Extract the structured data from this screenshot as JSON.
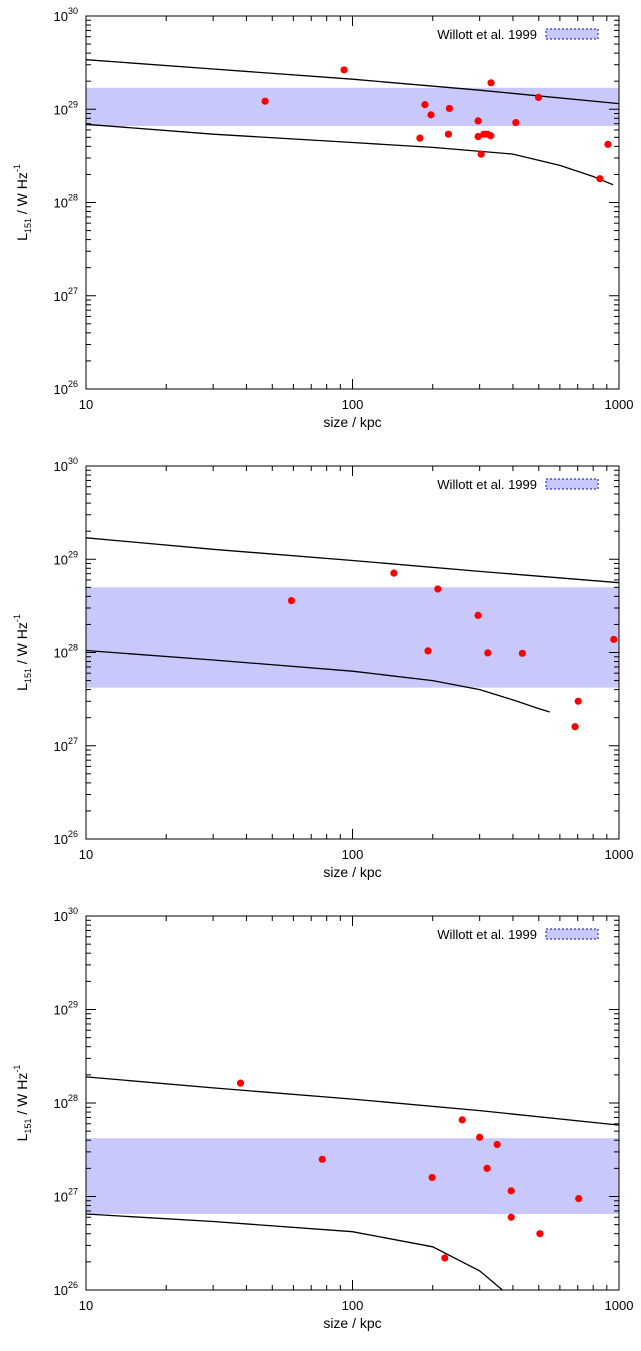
{
  "chart_data": [
    {
      "type": "scatter",
      "xlabel": "size / kpc",
      "ylabel": {
        "base": "L",
        "sub": "151",
        "rest": " / W Hz",
        "sup": "-1"
      },
      "xscale": "log",
      "yscale": "log",
      "xlim": [
        10,
        1000
      ],
      "ylim": [
        1e+26,
        1e+30
      ],
      "x_ticks": [
        {
          "v": 10,
          "label": "10"
        },
        {
          "v": 100,
          "label": "100"
        },
        {
          "v": 1000,
          "label": "1000"
        }
      ],
      "y_ticks": [
        {
          "v": 1e+26,
          "base": "10",
          "exp": "26"
        },
        {
          "v": 1e+27,
          "base": "10",
          "exp": "27"
        },
        {
          "v": 1e+28,
          "base": "10",
          "exp": "28"
        },
        {
          "v": 1e+29,
          "base": "10",
          "exp": "29"
        },
        {
          "v": 1e+30,
          "base": "10",
          "exp": "30"
        }
      ],
      "legend": {
        "label": "Willott et al. 1999",
        "position": "top-right"
      },
      "band": [
        6.6e+28,
        1.7e+29
      ],
      "curves": [
        [
          [
            10,
            3.4e+29
          ],
          [
            30,
            2.7e+29
          ],
          [
            100,
            2.1e+29
          ],
          [
            300,
            1.6e+29
          ],
          [
            1000,
            1.15e+29
          ]
        ],
        [
          [
            10,
            6.9e+28
          ],
          [
            30,
            5.4e+28
          ],
          [
            100,
            4.4e+28
          ],
          [
            200,
            3.9e+28
          ],
          [
            400,
            3.3e+28
          ],
          [
            600,
            2.5e+28
          ],
          [
            800,
            1.9e+28
          ],
          [
            950,
            1.55e+28
          ]
        ]
      ],
      "points": [
        [
          47,
          1.22e+29
        ],
        [
          93,
          2.64e+29
        ],
        [
          179,
          4.9e+28
        ],
        [
          187,
          1.12e+29
        ],
        [
          197,
          8.7e+28
        ],
        [
          229,
          5.4e+28
        ],
        [
          231,
          1.02e+29
        ],
        [
          296,
          7.5e+28
        ],
        [
          296,
          5.1e+28
        ],
        [
          304,
          3.3e+28
        ],
        [
          311,
          5.4e+28
        ],
        [
          321,
          5.4e+28
        ],
        [
          330,
          5.2e+28
        ],
        [
          331,
          1.92e+29
        ],
        [
          410,
          7.2e+28
        ],
        [
          499,
          1.34e+29
        ],
        [
          848,
          1.8e+28
        ],
        [
          909,
          4.2e+28
        ]
      ],
      "colors": {
        "band": "#c8c8fa",
        "points": "#ff0000",
        "curves": "#000000"
      }
    },
    {
      "type": "scatter",
      "xlabel": "size / kpc",
      "ylabel": {
        "base": "L",
        "sub": "151",
        "rest": " / W Hz",
        "sup": "-1"
      },
      "xscale": "log",
      "yscale": "log",
      "xlim": [
        10,
        1000
      ],
      "ylim": [
        1e+26,
        1e+30
      ],
      "x_ticks": [
        {
          "v": 10,
          "label": "10"
        },
        {
          "v": 100,
          "label": "100"
        },
        {
          "v": 1000,
          "label": "1000"
        }
      ],
      "y_ticks": [
        {
          "v": 1e+26,
          "base": "10",
          "exp": "26"
        },
        {
          "v": 1e+27,
          "base": "10",
          "exp": "27"
        },
        {
          "v": 1e+28,
          "base": "10",
          "exp": "28"
        },
        {
          "v": 1e+29,
          "base": "10",
          "exp": "29"
        },
        {
          "v": 1e+30,
          "base": "10",
          "exp": "30"
        }
      ],
      "legend": {
        "label": "Willott et al. 1999",
        "position": "top-right"
      },
      "band": [
        4.2e+27,
        5e+28
      ],
      "curves": [
        [
          [
            10,
            1.7e+29
          ],
          [
            30,
            1.28e+29
          ],
          [
            100,
            9.7e+28
          ],
          [
            300,
            7.4e+28
          ],
          [
            1000,
            5.6e+28
          ]
        ],
        [
          [
            10,
            1.05e+28
          ],
          [
            30,
            8.3e+27
          ],
          [
            100,
            6.3e+27
          ],
          [
            200,
            5e+27
          ],
          [
            300,
            4e+27
          ],
          [
            400,
            3.1e+27
          ],
          [
            500,
            2.5e+27
          ],
          [
            550,
            2.3e+27
          ]
        ]
      ],
      "points": [
        [
          59,
          3.6e+28
        ],
        [
          143,
          7.1e+28
        ],
        [
          192,
          1.04e+28
        ],
        [
          209,
          4.8e+28
        ],
        [
          296,
          2.5e+28
        ],
        [
          322,
          9.9e+27
        ],
        [
          434,
          9.8e+27
        ],
        [
          684,
          1.6e+27
        ],
        [
          703,
          3e+27
        ],
        [
          956,
          1.38e+28
        ]
      ],
      "colors": {
        "band": "#c8c8fa",
        "points": "#ff0000",
        "curves": "#000000"
      }
    },
    {
      "type": "scatter",
      "xlabel": "size / kpc",
      "ylabel": {
        "base": "L",
        "sub": "151",
        "rest": " / W Hz",
        "sup": "-1"
      },
      "xscale": "log",
      "yscale": "log",
      "xlim": [
        10,
        1000
      ],
      "ylim": [
        1e+26,
        1e+30
      ],
      "x_ticks": [
        {
          "v": 10,
          "label": "10"
        },
        {
          "v": 100,
          "label": "100"
        },
        {
          "v": 1000,
          "label": "1000"
        }
      ],
      "y_ticks": [
        {
          "v": 1e+26,
          "base": "10",
          "exp": "26"
        },
        {
          "v": 1e+27,
          "base": "10",
          "exp": "27"
        },
        {
          "v": 1e+28,
          "base": "10",
          "exp": "28"
        },
        {
          "v": 1e+29,
          "base": "10",
          "exp": "29"
        },
        {
          "v": 1e+30,
          "base": "10",
          "exp": "30"
        }
      ],
      "legend": {
        "label": "Willott et al. 1999",
        "position": "top-right"
      },
      "band": [
        6.5e+26,
        4.2e+27
      ],
      "curves": [
        [
          [
            10,
            1.9e+28
          ],
          [
            30,
            1.45e+28
          ],
          [
            100,
            1.1e+28
          ],
          [
            300,
            8.3e+27
          ],
          [
            1000,
            5.8e+27
          ]
        ],
        [
          [
            10,
            6.5e+26
          ],
          [
            30,
            5.4e+26
          ],
          [
            100,
            4.2e+26
          ],
          [
            200,
            2.9e+26
          ],
          [
            300,
            1.6e+26
          ],
          [
            365,
            1e+26
          ]
        ]
      ],
      "points": [
        [
          38,
          1.63e+28
        ],
        [
          77,
          2.5e+27
        ],
        [
          199,
          1.6e+27
        ],
        [
          222,
          2.2e+26
        ],
        [
          258,
          6.6e+27
        ],
        [
          300,
          4.3e+27
        ],
        [
          320,
          2e+27
        ],
        [
          349,
          3.6e+27
        ],
        [
          394,
          1.15e+27
        ],
        [
          394,
          6e+26
        ],
        [
          505,
          4e+26
        ],
        [
          706,
          9.5e+26
        ]
      ],
      "colors": {
        "band": "#c8c8fa",
        "points": "#ff0000",
        "curves": "#000000"
      }
    }
  ]
}
